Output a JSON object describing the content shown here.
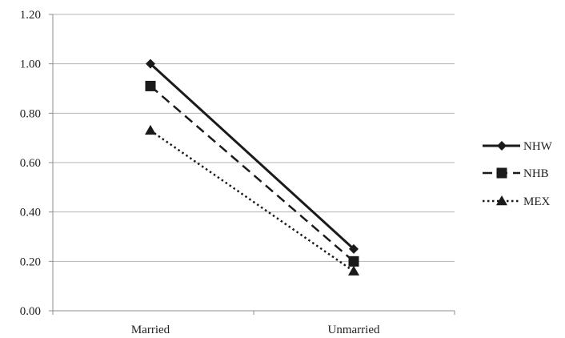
{
  "chart_data": {
    "type": "line",
    "categories": [
      "Married",
      "Unmarried"
    ],
    "series": [
      {
        "name": "NHW",
        "values": [
          1.0,
          0.25
        ],
        "color": "#1a1a1a",
        "line_style": "solid",
        "marker": "diamond"
      },
      {
        "name": "NHB",
        "values": [
          0.91,
          0.2
        ],
        "color": "#1a1a1a",
        "line_style": "dashed",
        "marker": "square"
      },
      {
        "name": "MEX",
        "values": [
          0.73,
          0.16
        ],
        "color": "#1a1a1a",
        "line_style": "dotted",
        "marker": "triangle"
      }
    ],
    "y_ticks": [
      "0.00",
      "0.20",
      "0.40",
      "0.60",
      "0.80",
      "1.00",
      "1.20"
    ],
    "ylim": [
      0,
      1.2
    ],
    "title": "",
    "xlabel": "",
    "ylabel": "",
    "grid": "horizontal",
    "legend_position": "right",
    "gridline_color": "#b3b3b3",
    "axis_color": "#8c8c8c"
  }
}
